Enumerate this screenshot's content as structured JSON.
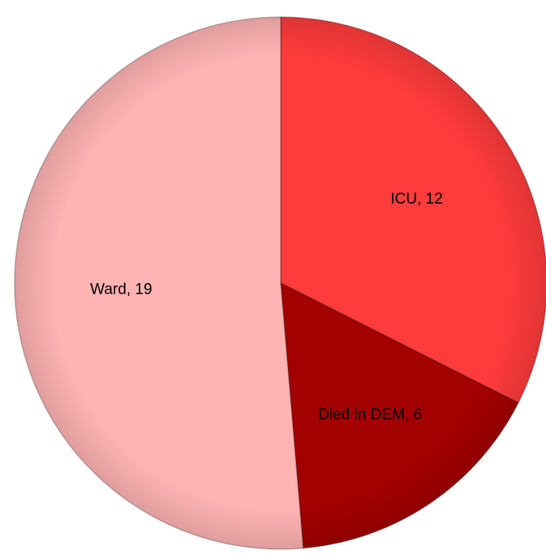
{
  "chart_data": {
    "type": "pie",
    "values": [
      12,
      6,
      19
    ],
    "value_labels": [
      "ICU, 12",
      "Died in DEM, 6",
      "Ward, 19"
    ],
    "colors": [
      "#ff3b3b",
      "#a30000",
      "#ffb3b3"
    ]
  }
}
